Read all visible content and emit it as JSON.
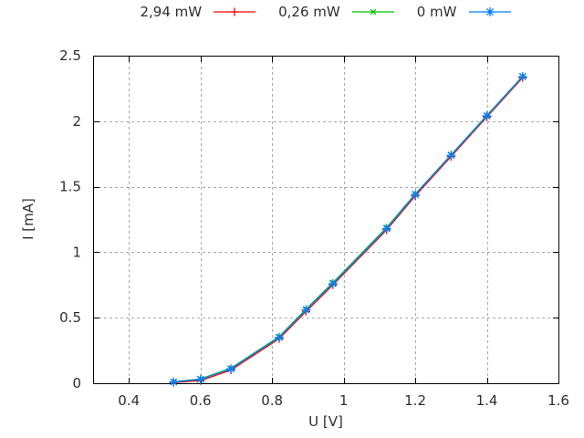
{
  "window": {
    "background": "#ffffff"
  },
  "chart_data": {
    "type": "line",
    "title": "",
    "xlabel": "U [V]",
    "ylabel": "I [mA]",
    "xlim": [
      0.3,
      1.6
    ],
    "ylim": [
      0,
      2.5
    ],
    "grid": "dashed",
    "legend_position": "above",
    "x": [
      0.525,
      0.6,
      0.685,
      0.82,
      0.895,
      0.97,
      1.12,
      1.2,
      1.3,
      1.4,
      1.5
    ],
    "series": [
      {
        "name": "2,94 mW",
        "color": "#ff0000",
        "marker": "plus",
        "values": [
          0.005,
          0.02,
          0.1,
          0.34,
          0.548,
          0.75,
          1.17,
          1.43,
          1.73,
          2.032,
          2.332
        ]
      },
      {
        "name": "0,26 mW",
        "color": "#00c000",
        "marker": "cross",
        "values": [
          0.012,
          0.033,
          0.115,
          0.356,
          0.566,
          0.768,
          1.188,
          1.445,
          1.743,
          2.044,
          2.343
        ]
      },
      {
        "name": "0 mW",
        "color": "#0080ff",
        "marker": "star",
        "values": [
          0.01,
          0.03,
          0.11,
          0.35,
          0.56,
          0.76,
          1.18,
          1.44,
          1.74,
          2.04,
          2.34
        ]
      }
    ],
    "xticks": {
      "values": [
        0.4,
        0.6,
        0.8,
        1.0,
        1.2,
        1.4,
        1.6
      ],
      "labels": [
        "0.4",
        "0.6",
        "0.8",
        "1",
        "1.2",
        "1.4",
        "1.6"
      ]
    },
    "yticks": {
      "values": [
        0,
        0.5,
        1.0,
        1.5,
        2.0,
        2.5
      ],
      "labels": [
        "0",
        "0.5",
        "1",
        "1.5",
        "2",
        "2.5"
      ]
    },
    "colors": {
      "grid": "#a9a9a9",
      "border": "#000000",
      "text": "#2e2e2e"
    }
  }
}
